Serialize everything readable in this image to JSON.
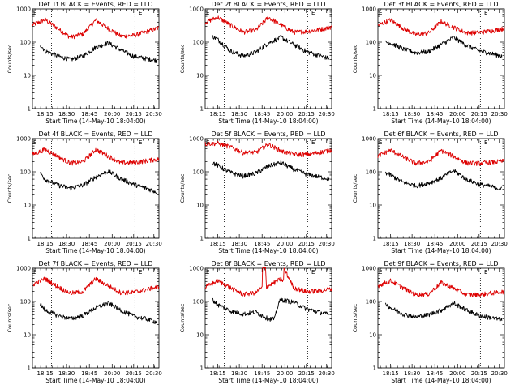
{
  "chart_data": [
    {
      "type": "line",
      "title": "Det 1f BLACK = Events, RED = LLD",
      "xlabel": "Start Time (14-May-10 18:04:00)",
      "ylabel": "Counts/sec",
      "x_ticks": [
        "18:15",
        "18:30",
        "18:45",
        "20:00",
        "20:15",
        "20:30"
      ],
      "y_ticks": [
        "1",
        "10",
        "100",
        "1000"
      ],
      "ylim": [
        1,
        1000
      ],
      "y_scale": "log",
      "marker_letter": "E",
      "series": [
        {
          "color": "#dd0000",
          "x": [
            0.0,
            0.1,
            0.2,
            0.3,
            0.4,
            0.5,
            0.6,
            0.7,
            0.8,
            0.9,
            1.0
          ],
          "values": [
            330,
            480,
            260,
            140,
            175,
            460,
            260,
            150,
            160,
            205,
            270
          ]
        },
        {
          "color": "#000000",
          "x": [
            0.06,
            0.1,
            0.2,
            0.3,
            0.4,
            0.5,
            0.6,
            0.7,
            0.8,
            0.9,
            0.98
          ],
          "values": [
            85,
            55,
            38,
            30,
            38,
            70,
            95,
            58,
            38,
            32,
            28
          ]
        }
      ]
    },
    {
      "type": "line",
      "title": "Det 2f BLACK = Events, RED = LLD",
      "xlabel": "Start Time (14-May-10 18:04:00)",
      "ylabel": "Counts/sec",
      "x_ticks": [
        "18:15",
        "18:30",
        "18:45",
        "20:00",
        "20:15",
        "20:30"
      ],
      "y_ticks": [
        "1",
        "10",
        "100",
        "1000"
      ],
      "ylim": [
        1,
        1000
      ],
      "y_scale": "log",
      "marker_letter": "E",
      "series": [
        {
          "color": "#dd0000",
          "x": [
            0.0,
            0.1,
            0.2,
            0.3,
            0.4,
            0.5,
            0.6,
            0.7,
            0.8,
            0.9,
            1.0
          ],
          "values": [
            400,
            560,
            330,
            200,
            230,
            560,
            330,
            200,
            210,
            240,
            290
          ]
        },
        {
          "color": "#000000",
          "x": [
            0.06,
            0.1,
            0.2,
            0.3,
            0.4,
            0.5,
            0.6,
            0.7,
            0.8,
            0.9,
            0.98
          ],
          "values": [
            150,
            120,
            55,
            38,
            50,
            95,
            140,
            85,
            52,
            40,
            32
          ]
        }
      ]
    },
    {
      "type": "line",
      "title": "Det 3f BLACK = Events, RED = LLD",
      "xlabel": "Start Time (14-May-10 18:04:00)",
      "ylabel": "Counts/sec",
      "x_ticks": [
        "18:15",
        "18:30",
        "18:45",
        "20:00",
        "20:15",
        "20:30"
      ],
      "y_ticks": [
        "1",
        "10",
        "100",
        "1000"
      ],
      "ylim": [
        1,
        1000
      ],
      "y_scale": "log",
      "marker_letter": "E",
      "series": [
        {
          "color": "#dd0000",
          "x": [
            0.0,
            0.1,
            0.2,
            0.3,
            0.4,
            0.5,
            0.6,
            0.7,
            0.8,
            0.9,
            1.0
          ],
          "values": [
            320,
            470,
            260,
            170,
            190,
            420,
            280,
            190,
            195,
            220,
            260
          ]
        },
        {
          "color": "#000000",
          "x": [
            0.06,
            0.1,
            0.2,
            0.3,
            0.4,
            0.5,
            0.6,
            0.7,
            0.8,
            0.9,
            0.98
          ],
          "values": [
            100,
            95,
            62,
            48,
            52,
            85,
            140,
            80,
            55,
            45,
            38
          ]
        }
      ]
    },
    {
      "type": "line",
      "title": "Det 4f BLACK = Events, RED = LLD",
      "xlabel": "Start Time (14-May-10 18:04:00)",
      "ylabel": "Counts/sec",
      "x_ticks": [
        "18:15",
        "18:30",
        "18:45",
        "20:00",
        "20:15",
        "20:30"
      ],
      "y_ticks": [
        "1",
        "10",
        "100",
        "1000"
      ],
      "ylim": [
        1,
        1000
      ],
      "y_scale": "log",
      "marker_letter": "E",
      "series": [
        {
          "color": "#dd0000",
          "x": [
            0.0,
            0.1,
            0.2,
            0.3,
            0.4,
            0.5,
            0.6,
            0.7,
            0.8,
            0.9,
            1.0
          ],
          "values": [
            330,
            480,
            290,
            185,
            200,
            470,
            300,
            185,
            190,
            215,
            240
          ]
        },
        {
          "color": "#000000",
          "x": [
            0.06,
            0.1,
            0.2,
            0.3,
            0.4,
            0.5,
            0.6,
            0.7,
            0.8,
            0.9,
            0.98
          ],
          "values": [
            95,
            60,
            40,
            32,
            40,
            70,
            105,
            62,
            42,
            32,
            25
          ]
        }
      ]
    },
    {
      "type": "line",
      "title": "Det 5f BLACK = Events, RED = LLD",
      "xlabel": "Start Time (14-May-10 18:04:00)",
      "ylabel": "Counts/sec",
      "x_ticks": [
        "18:15",
        "18:30",
        "18:45",
        "20:00",
        "20:15",
        "20:30"
      ],
      "y_ticks": [
        "1",
        "10",
        "100",
        "1000"
      ],
      "ylim": [
        1,
        1000
      ],
      "y_scale": "log",
      "marker_letter": "E",
      "series": [
        {
          "color": "#dd0000",
          "x": [
            0.0,
            0.1,
            0.2,
            0.3,
            0.4,
            0.5,
            0.6,
            0.7,
            0.8,
            0.9,
            1.0
          ],
          "values": [
            700,
            720,
            560,
            380,
            380,
            680,
            420,
            340,
            330,
            380,
            460
          ]
        },
        {
          "color": "#000000",
          "x": [
            0.06,
            0.1,
            0.2,
            0.3,
            0.4,
            0.5,
            0.6,
            0.7,
            0.8,
            0.9,
            0.98
          ],
          "values": [
            190,
            155,
            95,
            75,
            90,
            150,
            190,
            120,
            85,
            70,
            62
          ]
        }
      ]
    },
    {
      "type": "line",
      "title": "Det 6f BLACK = Events, RED = LLD",
      "xlabel": "Start Time (14-May-10 18:04:00)",
      "ylabel": "Counts/sec",
      "x_ticks": [
        "18:15",
        "18:30",
        "18:45",
        "20:00",
        "20:15",
        "20:30"
      ],
      "y_ticks": [
        "1",
        "10",
        "100",
        "1000"
      ],
      "ylim": [
        1,
        1000
      ],
      "y_scale": "log",
      "marker_letter": "E",
      "series": [
        {
          "color": "#dd0000",
          "x": [
            0.0,
            0.1,
            0.2,
            0.3,
            0.4,
            0.5,
            0.6,
            0.7,
            0.8,
            0.9,
            1.0
          ],
          "values": [
            300,
            450,
            280,
            180,
            200,
            440,
            290,
            185,
            180,
            195,
            210
          ]
        },
        {
          "color": "#000000",
          "x": [
            0.06,
            0.1,
            0.2,
            0.3,
            0.4,
            0.5,
            0.6,
            0.7,
            0.8,
            0.9,
            0.98
          ],
          "values": [
            95,
            80,
            48,
            38,
            45,
            65,
            110,
            60,
            42,
            36,
            30
          ]
        }
      ]
    },
    {
      "type": "line",
      "title": "Det 7f BLACK = Events, RED = LLD",
      "xlabel": "Start Time (14-May-10 18:04:00)",
      "ylabel": "Counts/sec",
      "x_ticks": [
        "18:15",
        "18:30",
        "18:45",
        "20:00",
        "20:15",
        "20:30"
      ],
      "y_ticks": [
        "1",
        "10",
        "100",
        "1000"
      ],
      "ylim": [
        1,
        1000
      ],
      "y_scale": "log",
      "marker_letter": "E",
      "series": [
        {
          "color": "#dd0000",
          "x": [
            0.0,
            0.1,
            0.2,
            0.3,
            0.4,
            0.5,
            0.6,
            0.7,
            0.8,
            0.9,
            1.0
          ],
          "values": [
            320,
            490,
            280,
            180,
            200,
            480,
            300,
            185,
            190,
            230,
            280
          ]
        },
        {
          "color": "#000000",
          "x": [
            0.06,
            0.1,
            0.2,
            0.3,
            0.4,
            0.5,
            0.6,
            0.7,
            0.8,
            0.9,
            0.98
          ],
          "values": [
            85,
            55,
            38,
            30,
            38,
            65,
            90,
            55,
            36,
            30,
            24
          ]
        }
      ]
    },
    {
      "type": "line",
      "title": "Det 8f BLACK = Events, RED = LLD",
      "xlabel": "Start Time (14-May-10 18:04:00)",
      "ylabel": "Counts/sec",
      "x_ticks": [
        "18:15",
        "18:30",
        "18:45",
        "20:00",
        "20:15",
        "20:30"
      ],
      "y_ticks": [
        "1",
        "10",
        "100",
        "1000"
      ],
      "ylim": [
        1,
        1000
      ],
      "y_scale": "log",
      "marker_letter": "E",
      "series": [
        {
          "color": "#dd0000",
          "x": [
            0.0,
            0.1,
            0.2,
            0.3,
            0.4,
            0.45,
            0.452,
            0.48,
            0.482,
            0.6,
            0.62,
            0.622,
            0.7,
            0.8,
            0.9,
            1.0
          ],
          "values": [
            270,
            420,
            260,
            165,
            185,
            260,
            1000,
            1000,
            270,
            480,
            400,
            1000,
            260,
            200,
            210,
            240
          ]
        },
        {
          "color": "#000000",
          "x": [
            0.06,
            0.1,
            0.2,
            0.3,
            0.4,
            0.5,
            0.55,
            0.58,
            0.6,
            0.7,
            0.8,
            0.9,
            0.98
          ],
          "values": [
            110,
            80,
            52,
            42,
            48,
            30,
            30,
            90,
            115,
            95,
            60,
            48,
            40
          ]
        }
      ]
    },
    {
      "type": "line",
      "title": "Det 9f BLACK = Events, RED = LLD",
      "xlabel": "Start Time (14-May-10 18:04:00)",
      "ylabel": "Counts/sec",
      "x_ticks": [
        "18:15",
        "18:30",
        "18:45",
        "20:00",
        "20:15",
        "20:30"
      ],
      "y_ticks": [
        "1",
        "10",
        "100",
        "1000"
      ],
      "ylim": [
        1,
        1000
      ],
      "y_scale": "log",
      "marker_letter": "E",
      "series": [
        {
          "color": "#dd0000",
          "x": [
            0.0,
            0.1,
            0.2,
            0.3,
            0.4,
            0.5,
            0.6,
            0.7,
            0.8,
            0.9,
            1.0
          ],
          "values": [
            300,
            420,
            260,
            160,
            170,
            370,
            250,
            160,
            160,
            180,
            200
          ]
        },
        {
          "color": "#000000",
          "x": [
            0.06,
            0.1,
            0.2,
            0.3,
            0.4,
            0.5,
            0.6,
            0.7,
            0.8,
            0.9,
            0.98
          ],
          "values": [
            90,
            65,
            42,
            34,
            40,
            55,
            90,
            55,
            38,
            32,
            28
          ]
        }
      ]
    }
  ]
}
